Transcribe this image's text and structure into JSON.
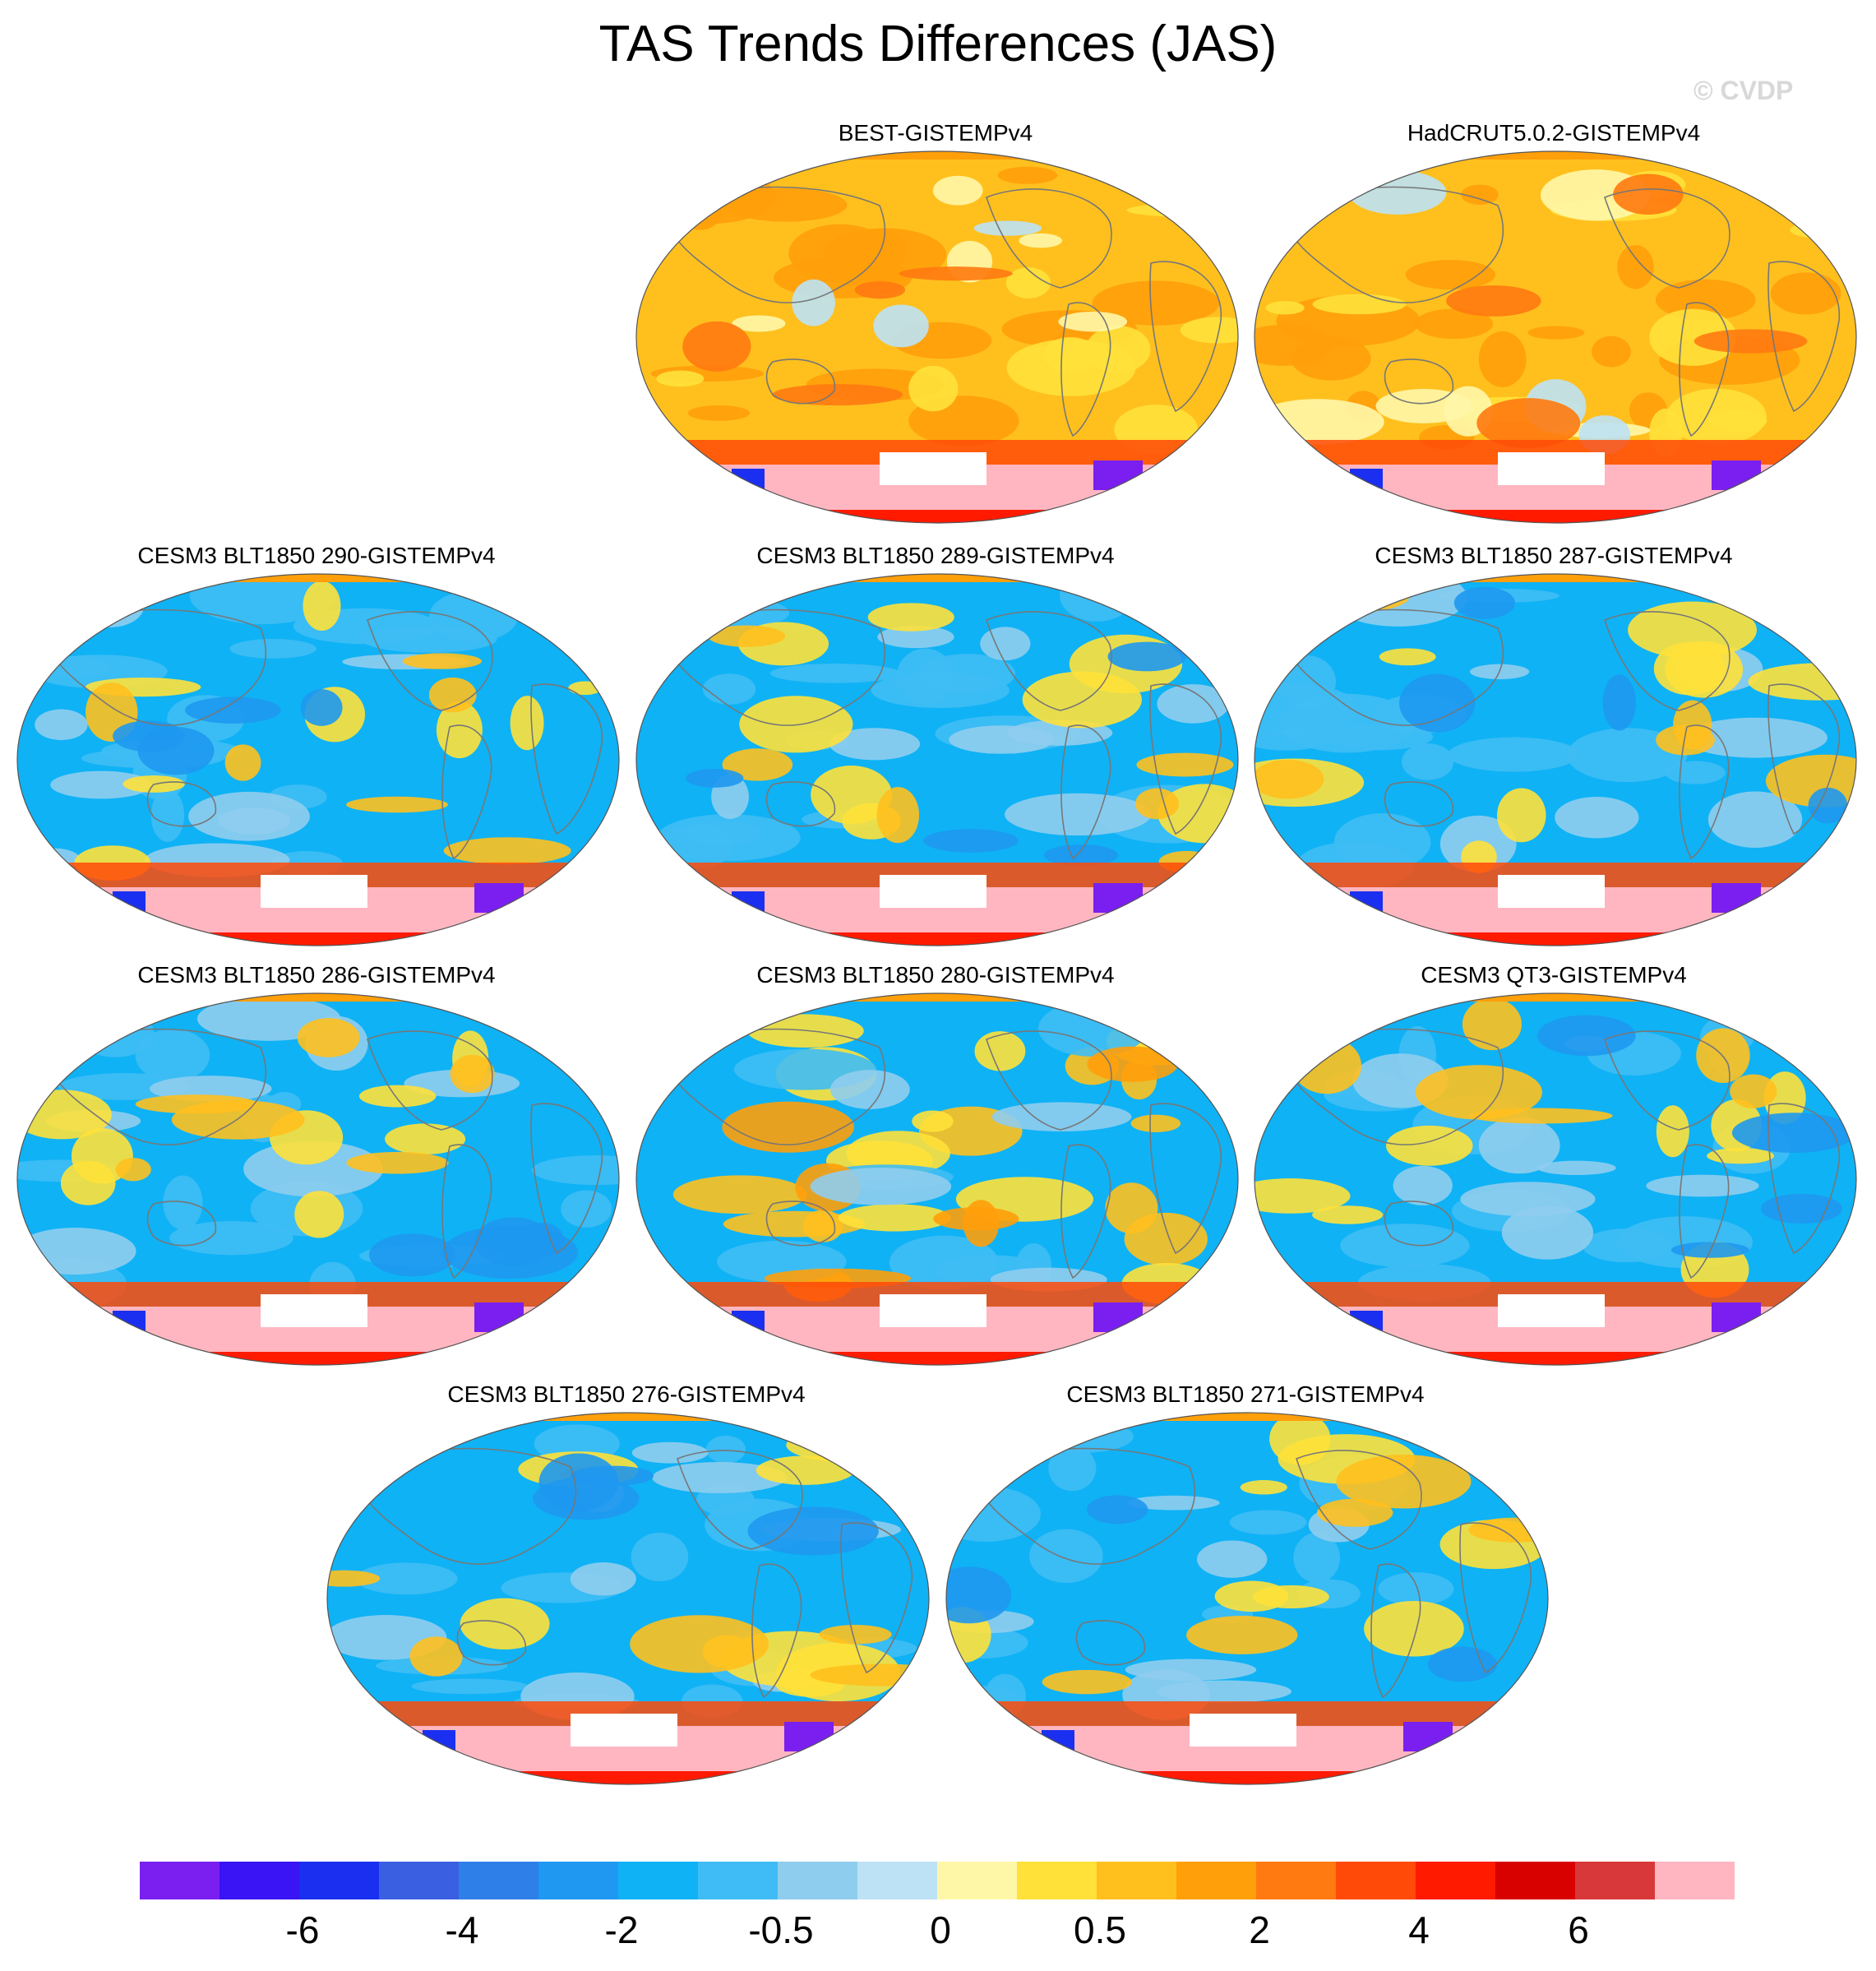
{
  "title": "TAS Trends Differences (JAS)",
  "watermark": "© CVDP",
  "panels": [
    {
      "title": "BEST-GISTEMPv4",
      "style": "warm"
    },
    {
      "title": "HadCRUT5.0.2-GISTEMPv4",
      "style": "warm"
    },
    {
      "title": "CESM3 BLT1850 290-GISTEMPv4",
      "style": "cool"
    },
    {
      "title": "CESM3 BLT1850 289-GISTEMPv4",
      "style": "cool"
    },
    {
      "title": "CESM3 BLT1850 287-GISTEMPv4",
      "style": "cool"
    },
    {
      "title": "CESM3 BLT1850 286-GISTEMPv4",
      "style": "cool"
    },
    {
      "title": "CESM3 BLT1850 280-GISTEMPv4",
      "style": "mixed"
    },
    {
      "title": "CESM3 QT3-GISTEMPv4",
      "style": "cool"
    },
    {
      "title": "CESM3 BLT1850 276-GISTEMPv4",
      "style": "cool"
    },
    {
      "title": "CESM3 BLT1850 271-GISTEMPv4",
      "style": "cool"
    }
  ],
  "colorbar": {
    "colors": [
      "#7a1ff0",
      "#3a14f5",
      "#1a2ff0",
      "#3a5fe0",
      "#2f7fe8",
      "#1e98f0",
      "#0fb2f5",
      "#3fbcf5",
      "#8fcdee",
      "#bde2f5",
      "#fff7a8",
      "#ffe13a",
      "#ffc01e",
      "#ff9f0a",
      "#ff7a10",
      "#ff4a08",
      "#ff1a00",
      "#d90000",
      "#d8383a",
      "#ffb6c1"
    ],
    "labels": [
      "-6",
      "-4",
      "-2",
      "-0.5",
      "0",
      "0.5",
      "2",
      "4",
      "6"
    ]
  }
}
